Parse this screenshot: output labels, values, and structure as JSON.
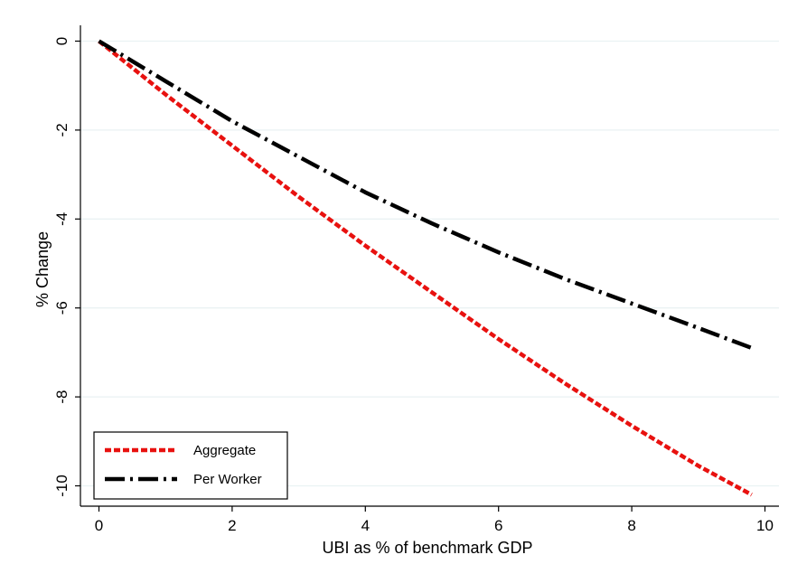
{
  "chart_data": {
    "type": "line",
    "title": "",
    "xlabel": "UBI as % of benchmark GDP",
    "ylabel": "% Change",
    "xlim": [
      0,
      10
    ],
    "ylim": [
      -10,
      0
    ],
    "x_ticks": [
      "0",
      "2",
      "4",
      "6",
      "8",
      "10"
    ],
    "y_ticks": [
      "0",
      "-2",
      "-4",
      "-6",
      "-8",
      "-10"
    ],
    "grid": "horizontal",
    "legend_position": "bottom-left",
    "series": [
      {
        "name": "Aggregate",
        "color": "#e8110f",
        "style": "short-dash",
        "x": [
          0,
          1,
          2,
          3,
          4,
          5,
          6,
          7,
          8,
          9,
          9.8
        ],
        "y": [
          0,
          -1.2,
          -2.35,
          -3.5,
          -4.6,
          -5.65,
          -6.7,
          -7.7,
          -8.65,
          -9.55,
          -10.2
        ]
      },
      {
        "name": "Per Worker",
        "color": "#000000",
        "style": "dash-dot",
        "x": [
          0,
          1,
          2,
          3,
          4,
          5,
          6,
          7,
          8,
          9,
          9.8
        ],
        "y": [
          0,
          -0.9,
          -1.8,
          -2.6,
          -3.4,
          -4.1,
          -4.75,
          -5.35,
          -5.9,
          -6.45,
          -6.9
        ]
      }
    ]
  }
}
